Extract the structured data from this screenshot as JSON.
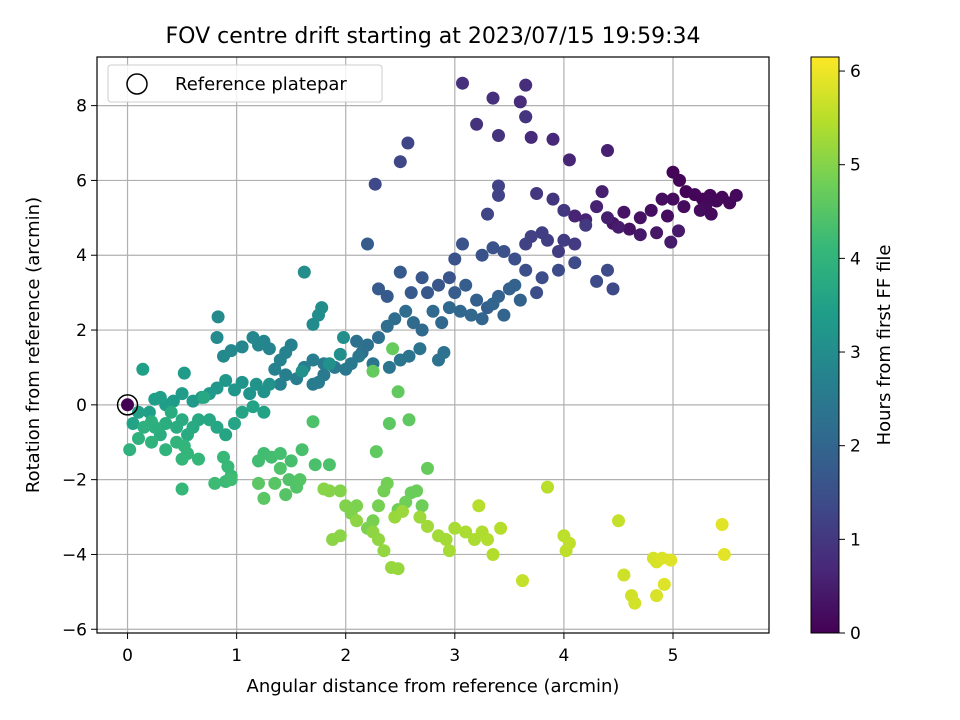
{
  "chart_data": {
    "type": "scatter",
    "title": "FOV centre drift starting at 2023/07/15 19:59:34",
    "xlabel": "Angular distance from reference (arcmin)",
    "ylabel": "Rotation from reference (arcmin)",
    "xlim": [
      -0.28,
      5.88
    ],
    "ylim": [
      -6.1,
      9.3
    ],
    "xticks": [
      0,
      1,
      2,
      3,
      4,
      5
    ],
    "yticks": [
      -6,
      -4,
      -2,
      0,
      2,
      4,
      6,
      8
    ],
    "grid": true,
    "legend": {
      "placement": "top-left",
      "entries": [
        "Reference platepar"
      ]
    },
    "reference_point": {
      "x": 0,
      "y": 0,
      "label": "Reference platepar"
    },
    "colorbar": {
      "label": "Hours from first FF file",
      "colormap": "viridis",
      "range": [
        0,
        6.15
      ],
      "ticks": [
        0,
        1,
        2,
        3,
        4,
        5,
        6
      ]
    },
    "colormap_stops": [
      "#440154",
      "#482878",
      "#3e4a89",
      "#31688e",
      "#26828e",
      "#1f9e89",
      "#35b779",
      "#6ece58",
      "#b5de2b",
      "#fde725"
    ],
    "points": [
      [
        0.0,
        0.0,
        0.0
      ],
      [
        5.0,
        6.22,
        0.05
      ],
      [
        5.06,
        6.0,
        0.06
      ],
      [
        5.12,
        5.7,
        0.07
      ],
      [
        5.2,
        5.62,
        0.08
      ],
      [
        5.27,
        5.5,
        0.09
      ],
      [
        5.34,
        5.6,
        0.1
      ],
      [
        5.4,
        5.45,
        0.11
      ],
      [
        5.45,
        5.55,
        0.12
      ],
      [
        5.52,
        5.4,
        0.13
      ],
      [
        5.58,
        5.6,
        0.14
      ],
      [
        5.3,
        5.3,
        0.15
      ],
      [
        5.35,
        5.1,
        0.16
      ],
      [
        5.25,
        5.2,
        0.17
      ],
      [
        5.1,
        5.3,
        0.18
      ],
      [
        5.0,
        5.5,
        0.19
      ],
      [
        4.95,
        5.05,
        0.2
      ],
      [
        4.9,
        5.5,
        0.22
      ],
      [
        4.8,
        5.2,
        0.25
      ],
      [
        4.7,
        5.0,
        0.28
      ],
      [
        4.6,
        4.7,
        0.3
      ],
      [
        4.55,
        5.15,
        0.32
      ],
      [
        4.45,
        4.85,
        0.35
      ],
      [
        4.85,
        4.6,
        0.37
      ],
      [
        4.7,
        4.55,
        0.4
      ],
      [
        5.05,
        4.65,
        0.42
      ],
      [
        4.98,
        4.35,
        0.45
      ],
      [
        4.5,
        4.75,
        0.47
      ],
      [
        4.4,
        5.0,
        0.5
      ],
      [
        4.35,
        5.7,
        0.52
      ],
      [
        4.4,
        6.8,
        0.55
      ],
      [
        4.3,
        5.3,
        0.58
      ],
      [
        4.2,
        4.95,
        0.6
      ],
      [
        4.1,
        5.05,
        0.62
      ],
      [
        4.05,
        6.55,
        0.65
      ],
      [
        3.9,
        7.1,
        0.68
      ],
      [
        3.7,
        7.15,
        0.72
      ],
      [
        3.65,
        7.7,
        0.75
      ],
      [
        3.6,
        8.1,
        0.78
      ],
      [
        3.65,
        8.55,
        0.8
      ],
      [
        3.35,
        8.2,
        0.82
      ],
      [
        3.07,
        8.6,
        0.85
      ],
      [
        3.2,
        7.5,
        0.88
      ],
      [
        3.4,
        7.2,
        0.9
      ],
      [
        3.65,
        7.7,
        0.92
      ],
      [
        3.9,
        5.5,
        0.95
      ],
      [
        3.75,
        5.65,
        0.98
      ],
      [
        4.0,
        5.2,
        1.0
      ],
      [
        4.2,
        4.8,
        1.02
      ],
      [
        4.1,
        4.3,
        1.05
      ],
      [
        4.0,
        4.4,
        1.08
      ],
      [
        3.95,
        4.1,
        1.1
      ],
      [
        3.85,
        4.4,
        1.12
      ],
      [
        3.8,
        4.6,
        1.15
      ],
      [
        3.7,
        4.5,
        1.18
      ],
      [
        3.65,
        4.3,
        1.2
      ],
      [
        3.4,
        5.85,
        1.22
      ],
      [
        3.4,
        5.6,
        1.24
      ],
      [
        3.3,
        5.1,
        1.26
      ],
      [
        2.57,
        7.0,
        1.28
      ],
      [
        2.5,
        6.5,
        1.3
      ],
      [
        2.27,
        5.9,
        1.32
      ],
      [
        4.45,
        3.1,
        1.34
      ],
      [
        4.4,
        3.6,
        1.36
      ],
      [
        4.3,
        3.3,
        1.38
      ],
      [
        4.1,
        3.8,
        1.4
      ],
      [
        3.95,
        3.6,
        1.42
      ],
      [
        3.8,
        3.4,
        1.44
      ],
      [
        3.75,
        3.0,
        1.46
      ],
      [
        3.65,
        3.6,
        1.48
      ],
      [
        3.55,
        3.9,
        1.5
      ],
      [
        3.45,
        4.1,
        1.52
      ],
      [
        3.35,
        4.2,
        1.54
      ],
      [
        3.25,
        4.0,
        1.56
      ],
      [
        3.07,
        4.3,
        1.58
      ],
      [
        3.0,
        3.9,
        1.6
      ],
      [
        2.95,
        3.4,
        1.62
      ],
      [
        2.85,
        3.2,
        1.64
      ],
      [
        2.75,
        3.0,
        1.66
      ],
      [
        2.7,
        3.4,
        1.68
      ],
      [
        2.6,
        3.0,
        1.7
      ],
      [
        2.5,
        3.55,
        1.72
      ],
      [
        2.38,
        2.9,
        1.74
      ],
      [
        2.3,
        3.1,
        1.76
      ],
      [
        2.2,
        4.3,
        1.78
      ],
      [
        3.0,
        3.0,
        1.8
      ],
      [
        3.1,
        3.2,
        1.82
      ],
      [
        3.2,
        2.8,
        1.84
      ],
      [
        3.3,
        2.6,
        1.86
      ],
      [
        3.4,
        2.9,
        1.88
      ],
      [
        3.5,
        3.1,
        1.9
      ],
      [
        3.6,
        2.8,
        1.92
      ],
      [
        3.55,
        3.2,
        1.94
      ],
      [
        3.45,
        2.4,
        1.96
      ],
      [
        3.35,
        2.7,
        1.98
      ],
      [
        3.25,
        2.3,
        2.0
      ],
      [
        3.15,
        2.4,
        2.02
      ],
      [
        3.05,
        2.5,
        2.04
      ],
      [
        2.95,
        2.6,
        2.06
      ],
      [
        2.88,
        2.2,
        2.08
      ],
      [
        2.8,
        2.5,
        2.1
      ],
      [
        2.7,
        2.0,
        2.12
      ],
      [
        2.62,
        2.2,
        2.14
      ],
      [
        2.55,
        2.5,
        2.16
      ],
      [
        2.45,
        2.3,
        2.18
      ],
      [
        2.38,
        2.1,
        2.2
      ],
      [
        2.3,
        1.8,
        2.22
      ],
      [
        2.2,
        1.6,
        2.24
      ],
      [
        2.15,
        1.4,
        2.26
      ],
      [
        2.1,
        1.7,
        2.28
      ],
      [
        2.9,
        1.4,
        2.3
      ],
      [
        2.85,
        1.2,
        2.32
      ],
      [
        2.68,
        1.5,
        2.34
      ],
      [
        2.58,
        1.3,
        2.36
      ],
      [
        2.5,
        1.2,
        2.38
      ],
      [
        2.4,
        1.0,
        2.4
      ],
      [
        2.25,
        1.1,
        2.42
      ],
      [
        2.12,
        1.3,
        2.44
      ],
      [
        2.05,
        1.1,
        2.46
      ],
      [
        2.0,
        0.95,
        2.48
      ],
      [
        1.9,
        1.0,
        2.5
      ],
      [
        1.8,
        0.8,
        2.52
      ],
      [
        1.75,
        0.6,
        2.54
      ],
      [
        1.7,
        0.55,
        2.56
      ],
      [
        1.8,
        1.1,
        2.58
      ],
      [
        1.7,
        1.2,
        2.6
      ],
      [
        1.62,
        1.0,
        2.62
      ],
      [
        1.55,
        0.7,
        2.64
      ],
      [
        1.45,
        0.8,
        2.66
      ],
      [
        1.4,
        0.55,
        2.68
      ],
      [
        1.35,
        0.95,
        2.7
      ],
      [
        1.5,
        1.6,
        2.72
      ],
      [
        1.45,
        1.4,
        2.74
      ],
      [
        1.4,
        1.2,
        2.76
      ],
      [
        1.3,
        1.5,
        2.78
      ],
      [
        1.25,
        1.7,
        2.8
      ],
      [
        1.2,
        1.6,
        2.82
      ],
      [
        1.15,
        1.8,
        2.84
      ],
      [
        1.05,
        1.55,
        2.86
      ],
      [
        0.95,
        1.45,
        2.88
      ],
      [
        0.88,
        1.3,
        2.9
      ],
      [
        0.82,
        1.8,
        2.92
      ],
      [
        0.83,
        2.35,
        2.94
      ],
      [
        1.7,
        2.15,
        2.96
      ],
      [
        1.75,
        2.4,
        2.98
      ],
      [
        1.78,
        2.6,
        3.0
      ],
      [
        1.62,
        3.55,
        3.02
      ],
      [
        1.98,
        1.8,
        3.04
      ],
      [
        1.95,
        1.35,
        3.06
      ],
      [
        1.85,
        1.1,
        3.08
      ],
      [
        1.6,
        0.9,
        3.1
      ],
      [
        1.3,
        0.55,
        3.12
      ],
      [
        1.25,
        0.35,
        3.14
      ],
      [
        1.18,
        0.55,
        3.16
      ],
      [
        1.12,
        0.3,
        3.18
      ],
      [
        1.05,
        0.6,
        3.2
      ],
      [
        0.98,
        0.4,
        3.22
      ],
      [
        0.9,
        0.65,
        3.24
      ],
      [
        0.82,
        0.45,
        3.26
      ],
      [
        0.75,
        0.3,
        3.28
      ],
      [
        0.68,
        0.2,
        3.3
      ],
      [
        0.6,
        0.1,
        3.32
      ],
      [
        0.52,
        0.85,
        3.34
      ],
      [
        0.5,
        0.3,
        3.36
      ],
      [
        0.42,
        0.1,
        3.38
      ],
      [
        0.35,
        0.0,
        3.4
      ],
      [
        0.3,
        0.2,
        3.42
      ],
      [
        0.25,
        0.15,
        3.44
      ],
      [
        0.2,
        -0.2,
        3.46
      ],
      [
        0.14,
        0.95,
        3.48
      ],
      [
        0.1,
        -0.2,
        3.5
      ],
      [
        0.05,
        -0.5,
        3.52
      ],
      [
        1.25,
        -0.2,
        3.54
      ],
      [
        1.15,
        -0.05,
        3.56
      ],
      [
        1.05,
        -0.2,
        3.58
      ],
      [
        0.98,
        -0.5,
        3.6
      ],
      [
        0.9,
        -0.8,
        3.62
      ],
      [
        0.82,
        -0.6,
        3.64
      ],
      [
        0.75,
        -0.4,
        3.66
      ],
      [
        0.7,
        0.2,
        3.68
      ],
      [
        0.65,
        -0.4,
        3.7
      ],
      [
        0.6,
        -0.6,
        3.72
      ],
      [
        0.55,
        -0.8,
        3.74
      ],
      [
        0.5,
        -0.4,
        3.76
      ],
      [
        0.45,
        -0.6,
        3.78
      ],
      [
        0.4,
        -0.2,
        3.8
      ],
      [
        0.35,
        -0.5,
        3.82
      ],
      [
        0.3,
        -0.8,
        3.84
      ],
      [
        0.25,
        -0.6,
        3.86
      ],
      [
        0.22,
        -0.45,
        3.88
      ],
      [
        0.15,
        -0.6,
        3.9
      ],
      [
        0.1,
        -0.9,
        3.92
      ],
      [
        0.02,
        -1.2,
        3.94
      ],
      [
        0.22,
        -1.0,
        3.96
      ],
      [
        0.35,
        -1.2,
        3.98
      ],
      [
        0.45,
        -1.0,
        4.0
      ],
      [
        0.52,
        -1.1,
        4.02
      ],
      [
        0.55,
        -1.3,
        4.04
      ],
      [
        0.5,
        -1.45,
        4.06
      ],
      [
        0.65,
        -1.45,
        4.08
      ],
      [
        0.5,
        -2.25,
        4.1
      ],
      [
        0.88,
        -1.4,
        4.12
      ],
      [
        0.92,
        -1.65,
        4.14
      ],
      [
        0.95,
        -1.9,
        4.16
      ],
      [
        0.9,
        -2.05,
        4.18
      ],
      [
        0.8,
        -2.1,
        4.2
      ],
      [
        0.95,
        -2.0,
        4.22
      ],
      [
        1.2,
        -1.5,
        4.24
      ],
      [
        1.25,
        -1.3,
        4.26
      ],
      [
        1.32,
        -1.4,
        4.28
      ],
      [
        1.4,
        -1.3,
        4.3
      ],
      [
        1.5,
        -1.5,
        4.32
      ],
      [
        1.6,
        -1.2,
        4.34
      ],
      [
        1.72,
        -1.6,
        4.36
      ],
      [
        1.85,
        -1.6,
        4.38
      ],
      [
        1.7,
        -0.45,
        4.4
      ],
      [
        1.4,
        -1.7,
        4.42
      ],
      [
        1.48,
        -2.0,
        4.44
      ],
      [
        1.55,
        -2.2,
        4.46
      ],
      [
        1.58,
        -2.0,
        4.48
      ],
      [
        1.45,
        -2.4,
        4.5
      ],
      [
        1.35,
        -2.1,
        4.52
      ],
      [
        1.25,
        -2.5,
        4.54
      ],
      [
        1.2,
        -2.1,
        4.56
      ],
      [
        2.4,
        -0.5,
        4.58
      ],
      [
        2.58,
        -0.4,
        4.6
      ],
      [
        2.28,
        -1.25,
        4.62
      ],
      [
        2.48,
        0.35,
        4.64
      ],
      [
        2.25,
        0.9,
        4.66
      ],
      [
        2.43,
        1.5,
        4.68
      ],
      [
        2.75,
        -1.7,
        4.7
      ],
      [
        2.6,
        -2.35,
        4.72
      ],
      [
        2.65,
        -2.3,
        4.74
      ],
      [
        2.7,
        -2.7,
        4.76
      ],
      [
        2.55,
        -2.6,
        4.78
      ],
      [
        2.48,
        -2.8,
        4.8
      ],
      [
        2.38,
        -2.1,
        4.82
      ],
      [
        2.35,
        -2.3,
        4.84
      ],
      [
        2.3,
        -2.7,
        4.86
      ],
      [
        2.25,
        -3.1,
        4.88
      ],
      [
        2.2,
        -3.3,
        4.9
      ],
      [
        2.1,
        -2.7,
        4.92
      ],
      [
        2.05,
        -2.9,
        4.94
      ],
      [
        2.0,
        -2.7,
        4.96
      ],
      [
        1.95,
        -2.3,
        4.98
      ],
      [
        1.85,
        -2.3,
        5.0
      ],
      [
        1.8,
        -2.25,
        5.02
      ],
      [
        1.95,
        -3.5,
        5.04
      ],
      [
        1.88,
        -3.6,
        5.06
      ],
      [
        2.1,
        -3.1,
        5.08
      ],
      [
        2.25,
        -3.4,
        5.1
      ],
      [
        2.3,
        -3.6,
        5.12
      ],
      [
        2.35,
        -3.9,
        5.14
      ],
      [
        2.42,
        -4.35,
        5.16
      ],
      [
        2.48,
        -4.38,
        5.18
      ],
      [
        2.45,
        -3.0,
        5.2
      ],
      [
        2.52,
        -2.85,
        5.22
      ],
      [
        2.68,
        -3.0,
        5.24
      ],
      [
        2.75,
        -3.25,
        5.26
      ],
      [
        2.85,
        -3.5,
        5.28
      ],
      [
        2.92,
        -3.6,
        5.3
      ],
      [
        2.95,
        -3.9,
        5.32
      ],
      [
        3.0,
        -3.3,
        5.34
      ],
      [
        3.1,
        -3.4,
        5.36
      ],
      [
        3.18,
        -3.6,
        5.38
      ],
      [
        3.25,
        -3.4,
        5.4
      ],
      [
        3.3,
        -3.6,
        5.42
      ],
      [
        3.35,
        -4.0,
        5.44
      ],
      [
        3.42,
        -3.3,
        5.46
      ],
      [
        3.22,
        -2.7,
        5.48
      ],
      [
        3.85,
        -2.2,
        5.5
      ],
      [
        4.0,
        -3.5,
        5.52
      ],
      [
        4.02,
        -3.9,
        5.54
      ],
      [
        4.05,
        -3.7,
        5.56
      ],
      [
        3.62,
        -4.7,
        5.6
      ],
      [
        4.5,
        -3.1,
        5.62
      ],
      [
        4.55,
        -4.55,
        5.7
      ],
      [
        4.62,
        -5.1,
        5.72
      ],
      [
        4.65,
        -5.3,
        5.74
      ],
      [
        4.82,
        -4.1,
        5.76
      ],
      [
        4.85,
        -4.2,
        5.78
      ],
      [
        4.85,
        -5.1,
        5.8
      ],
      [
        4.9,
        -4.1,
        5.82
      ],
      [
        4.92,
        -4.8,
        5.84
      ],
      [
        4.98,
        -4.15,
        5.86
      ],
      [
        5.45,
        -3.2,
        5.88
      ],
      [
        5.47,
        -4.0,
        5.9
      ]
    ]
  }
}
